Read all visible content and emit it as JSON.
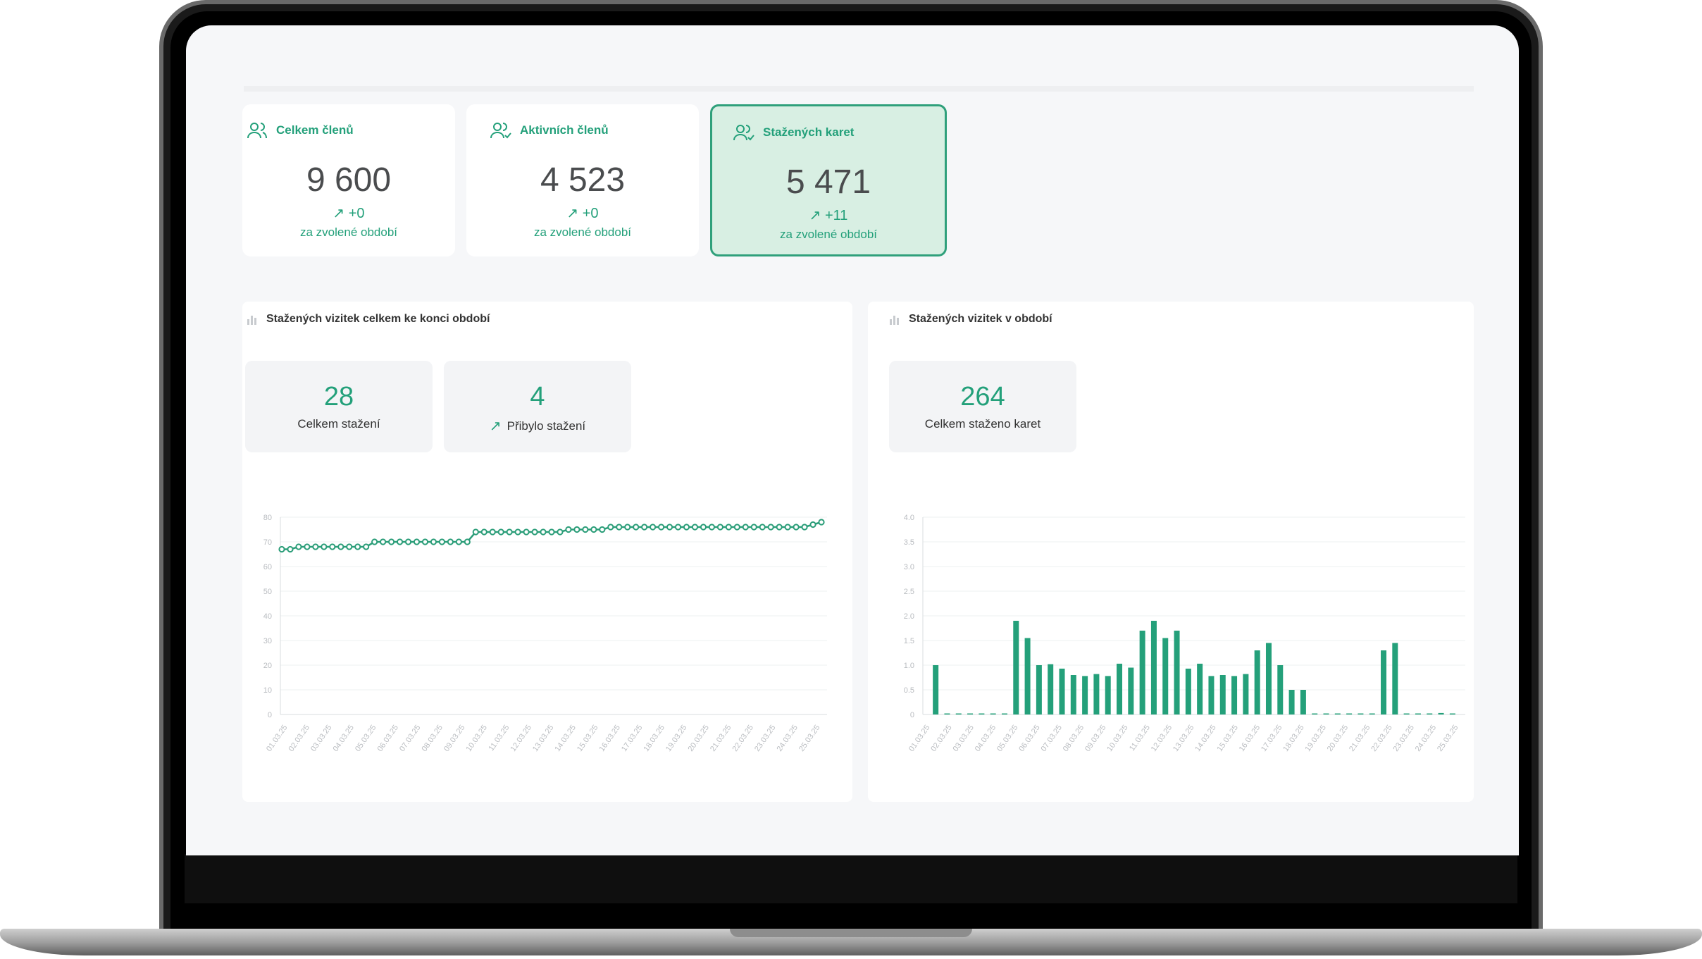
{
  "stat_cards": [
    {
      "title": "Celkem členů",
      "value": "9 600",
      "delta": "+0",
      "period": "za zvolené období",
      "icon": "users-icon"
    },
    {
      "title": "Aktivních členů",
      "value": "4 523",
      "delta": "+0",
      "period": "za zvolené období",
      "icon": "users-check-icon"
    },
    {
      "title": "Stažených karet",
      "value": "5 471",
      "delta": "+11",
      "period": "za zvolené období",
      "icon": "users-check-icon",
      "active": true
    }
  ],
  "panel_total": {
    "title": "Stažených vizitek celkem ke konci období",
    "kpis": [
      {
        "value": "28",
        "label": "Celkem stažení"
      },
      {
        "value": "4",
        "label": "Přibylo stažení",
        "arrow": "↗"
      }
    ]
  },
  "panel_period": {
    "title": "Stažených vizitek v období",
    "kpis": [
      {
        "value": "264",
        "label": "Celkem staženo karet"
      }
    ]
  },
  "colors": {
    "accent": "#23a07a",
    "active_bg": "#d8efe3"
  },
  "chart_data": [
    {
      "type": "line",
      "ylim": [
        0,
        80
      ],
      "yticks": [
        "0",
        "10",
        "20",
        "30",
        "40",
        "50",
        "60",
        "70",
        "80"
      ],
      "xticks": [
        "01.03.25",
        "02.03.25",
        "03.03.25",
        "04.03.25",
        "05.03.25",
        "06.03.25",
        "07.03.25",
        "08.03.25",
        "09.03.25",
        "10.03.25",
        "11.03.25",
        "12.03.25",
        "13.03.25",
        "14.03.25",
        "15.03.25",
        "16.03.25",
        "17.03.25",
        "18.03.25",
        "19.03.25",
        "20.03.25",
        "21.03.25",
        "22.03.25",
        "23.03.25",
        "24.03.25",
        "25.03.25"
      ],
      "values": [
        67,
        67,
        68,
        68,
        68,
        68,
        68,
        68,
        68,
        68,
        68,
        70,
        70,
        70,
        70,
        70,
        70,
        70,
        70,
        70,
        70,
        70,
        70,
        74,
        74,
        74,
        74,
        74,
        74,
        74,
        74,
        74,
        74,
        74,
        75,
        75,
        75,
        75,
        75,
        76,
        76,
        76,
        76,
        76,
        76,
        76,
        76,
        76,
        76,
        76,
        76,
        76,
        76,
        76,
        76,
        76,
        76,
        76,
        76,
        76,
        76,
        76,
        76,
        77,
        78
      ]
    },
    {
      "type": "bar",
      "ylim": [
        0,
        4
      ],
      "yticks": [
        "0",
        "0.5",
        "1.0",
        "1.5",
        "2.0",
        "2.5",
        "3.0",
        "3.5",
        "4.0"
      ],
      "xticks": [
        "01.03.25",
        "02.03.25",
        "03.03.25",
        "04.03.25",
        "05.03.25",
        "06.03.25",
        "07.03.25",
        "08.03.25",
        "09.03.25",
        "10.03.25",
        "11.03.25",
        "12.03.25",
        "13.03.25",
        "14.03.25",
        "15.03.25",
        "16.03.25",
        "17.03.25",
        "18.03.25",
        "19.03.25",
        "20.03.25",
        "21.03.25",
        "22.03.25",
        "23.03.25",
        "24.03.25",
        "25.03.25"
      ],
      "values": [
        1.0,
        0,
        0,
        0,
        0,
        0,
        0,
        1.9,
        1.55,
        1.0,
        1.02,
        0.93,
        0.8,
        0.78,
        0.82,
        0.78,
        1.03,
        0.95,
        1.7,
        1.9,
        1.55,
        1.7,
        0.93,
        1.03,
        0.78,
        0.8,
        0.78,
        0.82,
        1.3,
        1.45,
        1.0,
        0.5,
        0.5,
        0,
        0,
        0,
        0,
        0,
        0,
        1.3,
        1.45,
        0,
        0,
        0,
        0.03,
        0
      ]
    }
  ]
}
